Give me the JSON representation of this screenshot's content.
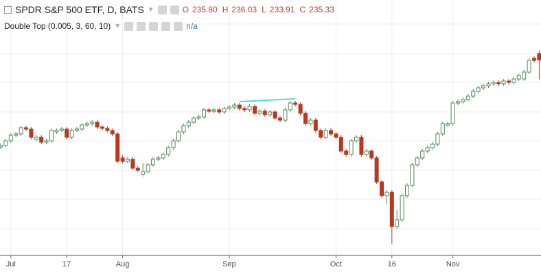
{
  "header": {
    "symbol": "SPDR S&P 500 ETF, D, BATS",
    "o_key": "O",
    "o": "235.80",
    "h_key": "H",
    "h": "236.03",
    "l_key": "L",
    "l": "233.91",
    "c_key": "C",
    "c": "235.33"
  },
  "study": {
    "name": "Double Top (0.005, 3, 60, 10)",
    "value": "n/a"
  },
  "chart_data": {
    "type": "candlestick",
    "ylim": [
      221.1,
      239.7
    ],
    "xlim": [
      -0.135,
      106.35
    ],
    "up_color": "#53875c",
    "down_color": "#b8391f",
    "grid": true,
    "grid_y": [
      237.95,
      235.8,
      233.7,
      231.55,
      229.45,
      227.3,
      225.2,
      223.05
    ],
    "xticks": [
      {
        "value": 2,
        "label": "Jul"
      },
      {
        "value": 13,
        "label": "17"
      },
      {
        "value": 24,
        "label": "Aug"
      },
      {
        "value": 45,
        "label": "Sep"
      },
      {
        "value": 66,
        "label": "Oct"
      },
      {
        "value": 77,
        "label": "16"
      },
      {
        "value": 89,
        "label": "Nov"
      }
    ],
    "pattern_line": {
      "x": [
        47,
        58
      ],
      "values": [
        232.3,
        232.5
      ],
      "color": "#4dd8ea"
    },
    "candles": [
      [
        229.0,
        229.25,
        228.85,
        229.1
      ],
      [
        229.1,
        229.6,
        228.95,
        229.45
      ],
      [
        229.45,
        230.0,
        229.3,
        229.85
      ],
      [
        229.85,
        230.1,
        229.7,
        229.95
      ],
      [
        229.95,
        230.55,
        229.8,
        230.4
      ],
      [
        230.4,
        230.55,
        230.15,
        230.3
      ],
      [
        230.3,
        230.45,
        229.55,
        229.7
      ],
      [
        229.55,
        229.9,
        229.4,
        229.7
      ],
      [
        229.7,
        229.85,
        229.2,
        229.35
      ],
      [
        229.35,
        229.6,
        229.2,
        229.45
      ],
      [
        229.45,
        230.35,
        229.3,
        230.2
      ],
      [
        230.1,
        230.35,
        229.95,
        230.2
      ],
      [
        230.2,
        230.45,
        230.1,
        230.3
      ],
      [
        230.3,
        230.45,
        229.55,
        229.7
      ],
      [
        229.7,
        230.35,
        229.55,
        230.2
      ],
      [
        230.2,
        230.45,
        230.1,
        230.3
      ],
      [
        230.3,
        230.75,
        230.15,
        230.6
      ],
      [
        230.6,
        230.85,
        230.45,
        230.7
      ],
      [
        230.7,
        230.95,
        230.55,
        230.8
      ],
      [
        230.8,
        230.95,
        230.3,
        230.45
      ],
      [
        230.45,
        230.6,
        230.2,
        230.35
      ],
      [
        230.35,
        230.5,
        230.05,
        230.2
      ],
      [
        230.2,
        230.35,
        229.8,
        229.95
      ],
      [
        229.95,
        230.1,
        227.8,
        227.95
      ],
      [
        228.2,
        228.4,
        227.8,
        227.95
      ],
      [
        227.95,
        228.3,
        227.8,
        228.1
      ],
      [
        228.1,
        228.25,
        227.3,
        227.45
      ],
      [
        227.45,
        227.6,
        227.15,
        227.3
      ],
      [
        227.0,
        227.85,
        226.85,
        227.2
      ],
      [
        227.2,
        227.85,
        227.05,
        227.7
      ],
      [
        227.7,
        228.25,
        227.55,
        228.1
      ],
      [
        228.1,
        228.35,
        227.95,
        228.2
      ],
      [
        228.2,
        228.6,
        228.05,
        228.45
      ],
      [
        228.45,
        229.1,
        228.3,
        228.95
      ],
      [
        228.95,
        229.6,
        228.8,
        229.45
      ],
      [
        229.45,
        230.25,
        229.3,
        230.1
      ],
      [
        230.1,
        230.7,
        229.95,
        230.55
      ],
      [
        230.55,
        230.95,
        230.4,
        230.8
      ],
      [
        230.8,
        231.25,
        230.65,
        231.1
      ],
      [
        231.1,
        231.35,
        230.95,
        231.2
      ],
      [
        231.2,
        231.85,
        231.05,
        231.7
      ],
      [
        231.7,
        231.85,
        231.45,
        231.6
      ],
      [
        231.6,
        231.85,
        231.45,
        231.7
      ],
      [
        231.7,
        231.85,
        231.4,
        231.55
      ],
      [
        231.55,
        231.95,
        231.4,
        231.8
      ],
      [
        231.8,
        232.05,
        231.65,
        231.9
      ],
      [
        231.9,
        232.2,
        231.75,
        232.05
      ],
      [
        232.05,
        232.2,
        231.65,
        231.8
      ],
      [
        231.8,
        231.95,
        231.55,
        231.7
      ],
      [
        231.7,
        232.1,
        231.55,
        231.95
      ],
      [
        231.95,
        232.1,
        231.3,
        231.45
      ],
      [
        231.45,
        231.75,
        231.3,
        231.6
      ],
      [
        231.6,
        231.75,
        231.2,
        231.35
      ],
      [
        231.35,
        231.7,
        231.2,
        231.55
      ],
      [
        231.55,
        231.7,
        230.95,
        231.1
      ],
      [
        231.1,
        231.25,
        230.8,
        230.95
      ],
      [
        230.95,
        231.85,
        230.8,
        231.7
      ],
      [
        231.7,
        232.35,
        231.55,
        232.2
      ],
      [
        232.2,
        232.35,
        231.95,
        232.1
      ],
      [
        232.1,
        232.25,
        231.3,
        231.45
      ],
      [
        231.45,
        231.6,
        230.55,
        230.7
      ],
      [
        230.7,
        231.1,
        230.55,
        230.95
      ],
      [
        230.95,
        231.1,
        230.05,
        230.2
      ],
      [
        230.2,
        230.35,
        229.55,
        229.7
      ],
      [
        229.7,
        230.35,
        229.55,
        230.2
      ],
      [
        230.2,
        230.35,
        229.8,
        229.95
      ],
      [
        229.95,
        230.1,
        229.55,
        229.7
      ],
      [
        229.7,
        229.85,
        228.55,
        228.7
      ],
      [
        228.7,
        228.85,
        228.3,
        228.45
      ],
      [
        228.45,
        229.6,
        228.3,
        229.45
      ],
      [
        229.45,
        229.85,
        229.3,
        229.7
      ],
      [
        229.7,
        229.85,
        228.3,
        228.45
      ],
      [
        228.45,
        228.85,
        228.3,
        228.7
      ],
      [
        228.7,
        228.85,
        228.05,
        228.2
      ],
      [
        228.2,
        228.35,
        226.3,
        226.45
      ],
      [
        226.45,
        226.6,
        225.3,
        225.45
      ],
      [
        225.45,
        225.85,
        224.8,
        225.7
      ],
      [
        225.7,
        225.85,
        221.95,
        223.2
      ],
      [
        223.2,
        224.4,
        223.05,
        223.7
      ],
      [
        223.7,
        225.6,
        223.55,
        225.45
      ],
      [
        225.45,
        226.35,
        225.3,
        226.2
      ],
      [
        226.2,
        227.85,
        226.05,
        227.7
      ],
      [
        227.7,
        228.35,
        227.55,
        228.2
      ],
      [
        228.2,
        228.85,
        228.05,
        228.7
      ],
      [
        228.7,
        229.1,
        228.55,
        228.95
      ],
      [
        228.95,
        229.35,
        228.8,
        229.2
      ],
      [
        229.2,
        230.1,
        229.05,
        229.95
      ],
      [
        229.95,
        230.85,
        229.8,
        230.7
      ],
      [
        230.6,
        230.85,
        230.45,
        230.7
      ],
      [
        230.7,
        232.35,
        230.55,
        232.2
      ],
      [
        232.2,
        232.45,
        232.05,
        232.3
      ],
      [
        232.3,
        232.6,
        232.15,
        232.45
      ],
      [
        232.45,
        232.85,
        232.3,
        232.7
      ],
      [
        232.7,
        233.2,
        232.55,
        233.05
      ],
      [
        233.05,
        233.45,
        232.9,
        233.3
      ],
      [
        233.3,
        233.6,
        233.15,
        233.45
      ],
      [
        233.45,
        233.75,
        233.3,
        233.6
      ],
      [
        233.6,
        233.85,
        233.45,
        233.7
      ],
      [
        233.7,
        233.85,
        233.45,
        233.6
      ],
      [
        233.6,
        233.95,
        233.45,
        233.8
      ],
      [
        233.8,
        233.95,
        233.55,
        233.7
      ],
      [
        233.7,
        234.1,
        233.55,
        233.95
      ],
      [
        233.95,
        234.35,
        233.8,
        234.2
      ],
      [
        233.95,
        234.6,
        233.8,
        234.45
      ],
      [
        234.45,
        235.45,
        234.3,
        235.3
      ],
      [
        235.45,
        235.6,
        235.15,
        235.3
      ],
      [
        235.8,
        236.03,
        233.91,
        235.33
      ]
    ]
  }
}
